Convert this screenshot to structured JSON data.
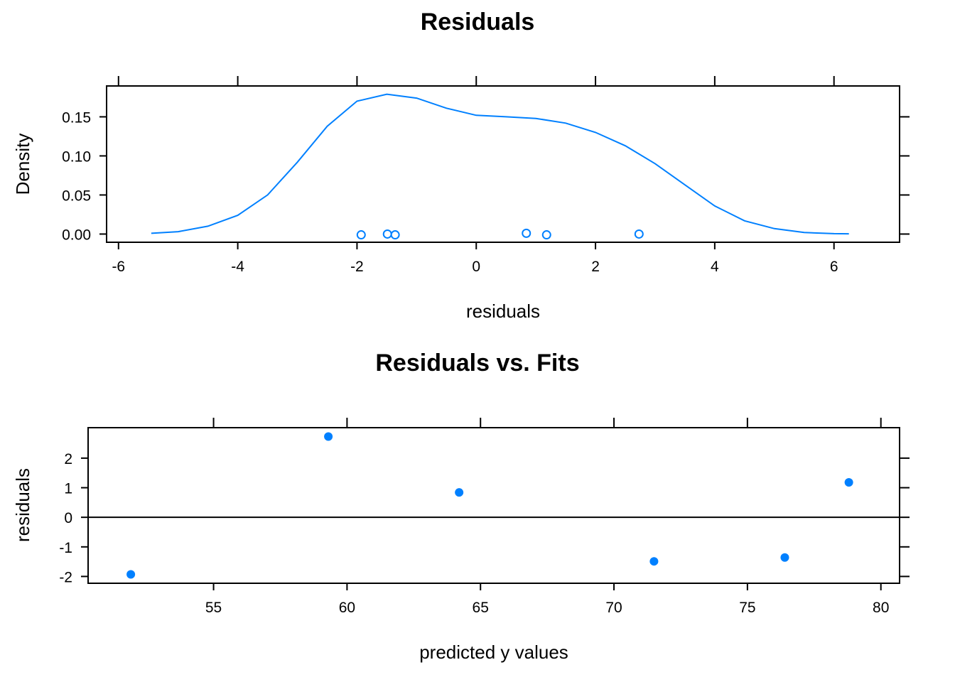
{
  "colors": {
    "series": "#0080ff",
    "axis": "#000000",
    "background": "#ffffff"
  },
  "chart_data": [
    {
      "type": "line",
      "title": "Residuals",
      "xlabel": "residuals",
      "ylabel": "Density",
      "xlim": [
        -6.2,
        7.1
      ],
      "ylim": [
        -0.0105,
        0.1895
      ],
      "xticks": [
        -6,
        -4,
        -2,
        0,
        2,
        4,
        6
      ],
      "xtick_labels": [
        "-6",
        "-4",
        "-2",
        "0",
        "2",
        "4",
        "6"
      ],
      "yticks": [
        0.0,
        0.05,
        0.1,
        0.15
      ],
      "ytick_labels": [
        "0.00",
        "0.05",
        "0.10",
        "0.15"
      ],
      "density_curve": {
        "x": [
          -5.45,
          -5.0,
          -4.5,
          -4.0,
          -3.5,
          -3.0,
          -2.5,
          -2.0,
          -1.5,
          -1.0,
          -0.5,
          0.0,
          0.5,
          1.0,
          1.5,
          2.0,
          2.5,
          3.0,
          3.5,
          4.0,
          4.5,
          5.0,
          5.5,
          6.0,
          6.25
        ],
        "y": [
          0.001,
          0.003,
          0.01,
          0.024,
          0.05,
          0.092,
          0.138,
          0.17,
          0.179,
          0.174,
          0.161,
          0.152,
          0.15,
          0.148,
          0.142,
          0.13,
          0.113,
          0.09,
          0.063,
          0.036,
          0.017,
          0.007,
          0.002,
          0.0005,
          0.0003
        ]
      },
      "rug_points": {
        "x": [
          -1.93,
          -1.49,
          -1.36,
          0.84,
          1.18,
          2.73
        ],
        "y": [
          -0.001,
          0.0,
          -0.001,
          0.001,
          -0.001,
          0.0
        ]
      }
    },
    {
      "type": "scatter",
      "title": "Residuals vs. Fits",
      "xlabel": "predicted y values",
      "ylabel": "residuals",
      "xlim": [
        50.3,
        80.7
      ],
      "ylim": [
        -2.23,
        3.03
      ],
      "xticks": [
        55,
        60,
        65,
        70,
        75,
        80
      ],
      "xtick_labels": [
        "55",
        "60",
        "65",
        "70",
        "75",
        "80"
      ],
      "yticks": [
        -2,
        -1,
        0,
        1,
        2
      ],
      "ytick_labels": [
        "-2",
        "-1",
        "0",
        "1",
        "2"
      ],
      "reference_line_y": 0,
      "points": {
        "x": [
          51.9,
          59.3,
          64.2,
          71.5,
          76.4,
          78.8
        ],
        "y": [
          -1.93,
          2.73,
          0.84,
          -1.49,
          -1.36,
          1.18
        ]
      }
    }
  ]
}
